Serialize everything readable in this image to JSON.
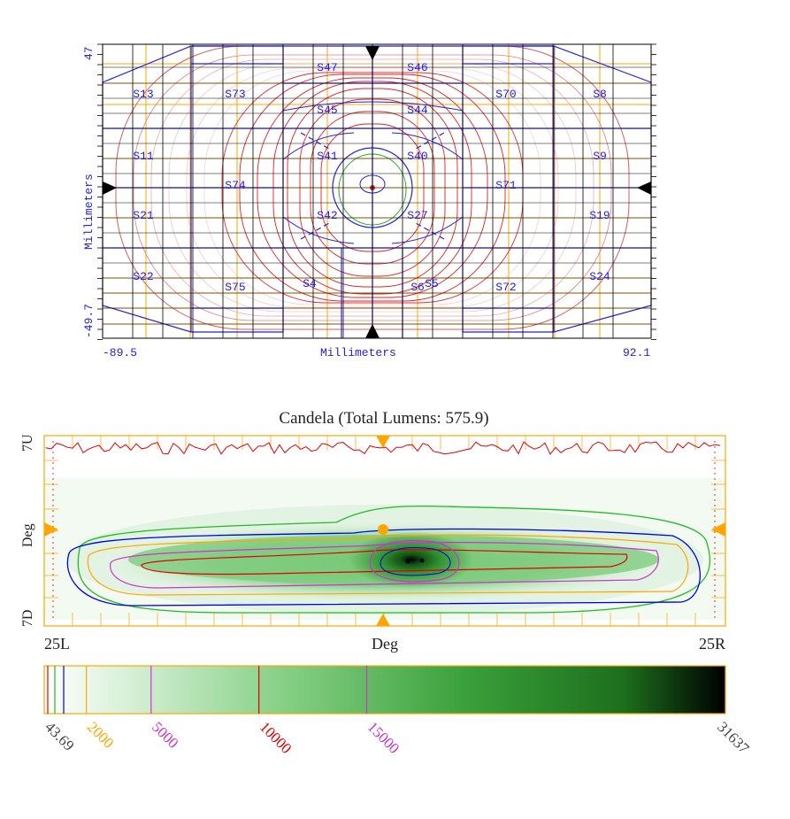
{
  "colors": {
    "grid_blue": "#2222dd",
    "grid_orange": "#ffa500",
    "contour_red": "#e00000",
    "contour_blue": "#0000e0",
    "contour_green": "#22bb22",
    "contour_magenta": "#cc33cc",
    "contour_orange": "#ffa500",
    "frame_black": "#000000",
    "seg_label": "#1a1aff"
  },
  "top_panel": {
    "x_axis_label": "Millimeters",
    "y_axis_label": "Millimeters",
    "x_min_label": "-89.5",
    "x_max_label": "92.1",
    "y_min_label": "-49.7",
    "y_max_label": "47",
    "segments": [
      {
        "id": "S47",
        "col": 4,
        "row": 0
      },
      {
        "id": "S46",
        "col": 5,
        "row": 0
      },
      {
        "id": "S73",
        "col": 2,
        "row": 1
      },
      {
        "id": "S70",
        "col": 7,
        "row": 1
      },
      {
        "id": "S13",
        "col": 0,
        "row": 1
      },
      {
        "id": "S8",
        "col": 9,
        "row": 1
      },
      {
        "id": "S45",
        "col": 4,
        "row": 2
      },
      {
        "id": "S44",
        "col": 5,
        "row": 2
      },
      {
        "id": "S11",
        "col": 0,
        "row": 3
      },
      {
        "id": "S41",
        "col": 4,
        "row": 3
      },
      {
        "id": "S40",
        "col": 5,
        "row": 3
      },
      {
        "id": "S9",
        "col": 9,
        "row": 3
      },
      {
        "id": "S74",
        "col": 2,
        "row": 4
      },
      {
        "id": "S71",
        "col": 7,
        "row": 4
      },
      {
        "id": "S21",
        "col": 0,
        "row": 5
      },
      {
        "id": "S42",
        "col": 4,
        "row": 5
      },
      {
        "id": "S27",
        "col": 5,
        "row": 5
      },
      {
        "id": "S19",
        "col": 9,
        "row": 5
      },
      {
        "id": "S22",
        "col": 0,
        "row": 7
      },
      {
        "id": "S24",
        "col": 9,
        "row": 7
      },
      {
        "id": "S75",
        "col": 2,
        "row": 8
      },
      {
        "id": "S4",
        "col": 3.7,
        "row": 7.7
      },
      {
        "id": "S6",
        "col": 5,
        "row": 8
      },
      {
        "id": "S5",
        "col": 6.3,
        "row": 7.7
      },
      {
        "id": "S72",
        "col": 7,
        "row": 8
      }
    ]
  },
  "chart_data": {
    "type": "heatmap",
    "title": "Candela (Total Lumens: 575.9)",
    "xlabel": "Deg",
    "ylabel": "Deg",
    "x_left_label": "25L",
    "x_right_label": "25R",
    "y_top_label": "7U",
    "y_bottom_label": "7D",
    "x_range_deg": [
      -25,
      25
    ],
    "y_range_deg": [
      -7,
      7
    ],
    "colormap": [
      "#ffffff",
      "#e6f5e6",
      "#7ccf7c",
      "#3da43d",
      "#1f7a1f",
      "#000000"
    ],
    "colorbar": {
      "min": 43.69,
      "max": 31637,
      "min_label": "43.69",
      "max_label": "31637",
      "ticks": [
        {
          "label": "2000",
          "value": 2000,
          "color": "#ffa500"
        },
        {
          "label": "5000",
          "value": 5000,
          "color": "#cc33cc"
        },
        {
          "label": "10000",
          "value": 10000,
          "color": "#e00000"
        },
        {
          "label": "15000",
          "value": 15000,
          "color": "#cc33cc"
        }
      ]
    },
    "contour_levels": [
      {
        "value": 43.69,
        "color": "#e00000"
      },
      {
        "value": 500,
        "color": "#22bb22"
      },
      {
        "value": 1000,
        "color": "#0000e0"
      },
      {
        "value": 2000,
        "color": "#ffa500"
      },
      {
        "value": 5000,
        "color": "#cc33cc"
      },
      {
        "value": 10000,
        "color": "#e00000"
      },
      {
        "value": 15000,
        "color": "#cc33cc"
      }
    ],
    "peak_candela": 31637,
    "peak_position_deg": {
      "h": 2.5,
      "v": -3
    }
  }
}
